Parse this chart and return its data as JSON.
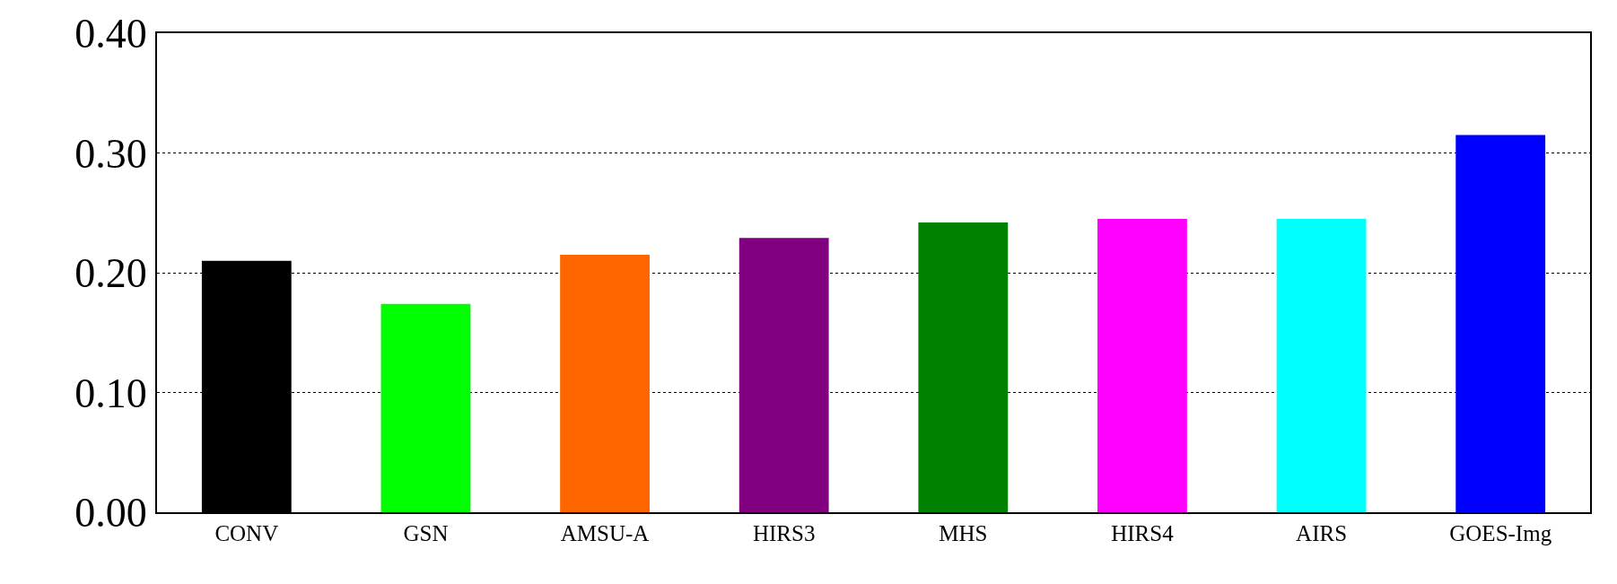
{
  "chart_data": {
    "type": "bar",
    "categories": [
      "CONV",
      "GSN",
      "AMSU-A",
      "HIRS3",
      "MHS",
      "HIRS4",
      "AIRS",
      "GOES-Img"
    ],
    "values": [
      0.21,
      0.174,
      0.215,
      0.229,
      0.242,
      0.245,
      0.245,
      0.315
    ],
    "colors": [
      "#000000",
      "#00ff00",
      "#ff6600",
      "#800080",
      "#008000",
      "#ff00ff",
      "#00ffff",
      "#0000ff"
    ],
    "ylim": [
      0,
      0.4
    ],
    "yticks": [
      {
        "value": 0,
        "label": "0.00"
      },
      {
        "value": 0.1,
        "label": "0.10"
      },
      {
        "value": 0.2,
        "label": "0.20"
      },
      {
        "value": 0.3,
        "label": "0.30"
      },
      {
        "value": 0.4,
        "label": "0.40"
      }
    ],
    "grid": "y"
  }
}
